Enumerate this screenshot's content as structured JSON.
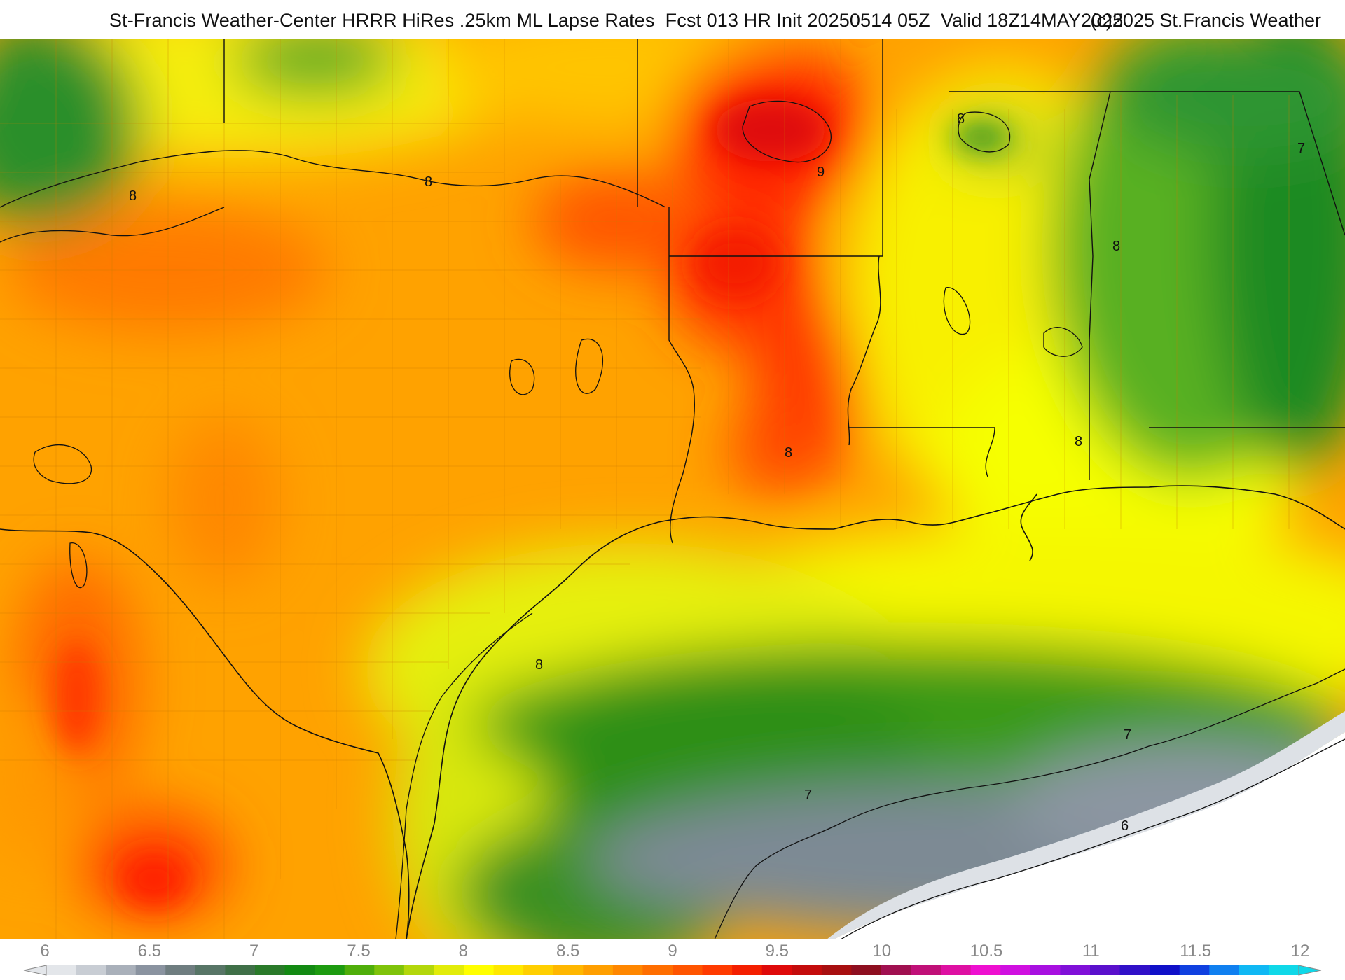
{
  "header": {
    "title": "St-Francis Weather-Center HRRR HiRes .25km ML Lapse Rates  Fcst 013 HR Init 20250514 05Z  Valid 18Z14MAY2025",
    "copyright": "(c)2025 St.Francis Weather"
  },
  "map": {
    "product": "ML Lapse Rates",
    "contour_labels": [
      {
        "value": "8",
        "id": "contour-8-west"
      },
      {
        "value": "8",
        "id": "contour-8-north-texas"
      },
      {
        "value": "8",
        "id": "contour-8-louisiana-coast"
      },
      {
        "value": "8",
        "id": "contour-8-south-texas-coast"
      },
      {
        "value": "8",
        "id": "contour-8-mississippi"
      },
      {
        "value": "8",
        "id": "contour-8-alabama"
      },
      {
        "value": "8",
        "id": "contour-8-gulf-east"
      },
      {
        "value": "9",
        "id": "contour-9-oklahoma"
      },
      {
        "value": "7",
        "id": "contour-7-gulf-central"
      },
      {
        "value": "7",
        "id": "contour-7-gulf-east"
      },
      {
        "value": "7",
        "id": "contour-7-georgia"
      },
      {
        "value": "6",
        "id": "contour-6-gulf"
      }
    ]
  },
  "legend": {
    "ticks": [
      "6",
      "6.5",
      "7",
      "7.5",
      "8",
      "8.5",
      "9",
      "9.5",
      "10",
      "10.5",
      "11",
      "11.5",
      "12"
    ],
    "colors": [
      "#e3e6ea",
      "#c8cdd4",
      "#a9b0ba",
      "#8a93a0",
      "#6f7d80",
      "#577566",
      "#3f7048",
      "#2a7a2a",
      "#138a13",
      "#1d9b10",
      "#4fae0a",
      "#7fc30a",
      "#b3d70b",
      "#e2ec0a",
      "#ffff00",
      "#ffe800",
      "#ffcf00",
      "#ffb700",
      "#ff9f00",
      "#ff8700",
      "#ff6e00",
      "#ff5500",
      "#ff3b00",
      "#f41f00",
      "#df0a0a",
      "#c40c0c",
      "#a80f10",
      "#8e0f20",
      "#a01050",
      "#c01078",
      "#de10a2",
      "#ee10d0",
      "#d010e0",
      "#a810e0",
      "#8010d8",
      "#5a10cc",
      "#3010c8",
      "#1010c8",
      "#1040e0",
      "#1080f0",
      "#10b8f4",
      "#10d8e8"
    ]
  }
}
